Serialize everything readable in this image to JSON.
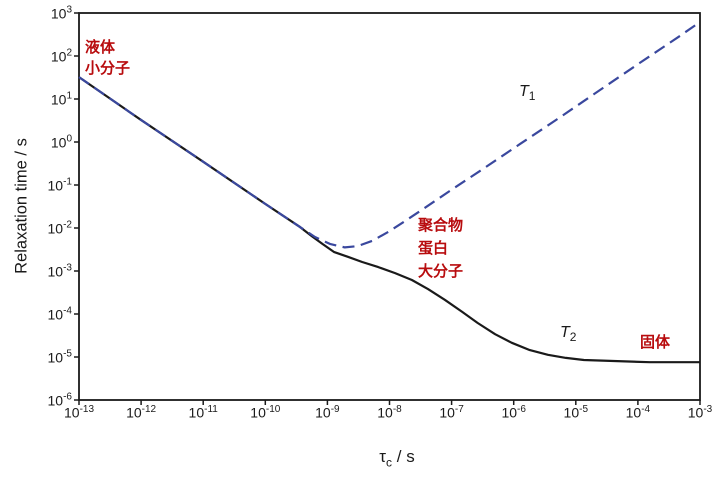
{
  "chart_data": {
    "type": "line",
    "title": "",
    "ylabel": "Relaxation time / s",
    "xlabel": {
      "tau": "τ",
      "sub": "c",
      "unit": " / s"
    },
    "x_scale": "log10",
    "y_scale": "log10",
    "xlim_log10": [
      -13,
      -3
    ],
    "ylim_log10": [
      -6,
      3
    ],
    "tick_mantissa": "10",
    "x_tick_exponents": [
      -13,
      -12,
      -11,
      -10,
      -9,
      -8,
      -7,
      -6,
      -5,
      -4,
      -3
    ],
    "y_tick_exponents": [
      3,
      2,
      1,
      0,
      -1,
      -2,
      -3,
      -4,
      -5,
      -6
    ],
    "grid": false,
    "legend_position": "none",
    "axis_color": "#1a1a1a",
    "series": [
      {
        "name": "T1",
        "label": {
          "base": "T",
          "sub": "1"
        },
        "line_style": "dashed",
        "color": "#3a489e",
        "points_log10": [
          [
            -13.0,
            1.51
          ],
          [
            -12.02,
            0.53
          ],
          [
            -11.02,
            -0.44
          ],
          [
            -10.02,
            -1.42
          ],
          [
            -9.44,
            -1.98
          ],
          [
            -9.2,
            -2.21
          ],
          [
            -8.96,
            -2.37
          ],
          [
            -8.72,
            -2.45
          ],
          [
            -8.51,
            -2.42
          ],
          [
            -8.28,
            -2.3
          ],
          [
            -8.02,
            -2.09
          ],
          [
            -7.75,
            -1.84
          ],
          [
            -7.43,
            -1.53
          ],
          [
            -7.03,
            -1.14
          ],
          [
            -6.54,
            -0.67
          ],
          [
            -5.9,
            -0.05
          ],
          [
            -5.25,
            0.58
          ],
          [
            -4.61,
            1.21
          ],
          [
            -3.97,
            1.84
          ],
          [
            -3.32,
            2.47
          ],
          [
            -3.0,
            2.79
          ]
        ]
      },
      {
        "name": "T2",
        "label": {
          "base": "T",
          "sub": "2"
        },
        "line_style": "solid",
        "color": "#1a1a1a",
        "points_log10": [
          [
            -13.0,
            1.51
          ],
          [
            -12.02,
            0.53
          ],
          [
            -11.02,
            -0.44
          ],
          [
            -10.02,
            -1.42
          ],
          [
            -9.44,
            -1.98
          ],
          [
            -9.25,
            -2.19
          ],
          [
            -9.08,
            -2.37
          ],
          [
            -8.89,
            -2.56
          ],
          [
            -8.67,
            -2.67
          ],
          [
            -8.44,
            -2.79
          ],
          [
            -8.18,
            -2.91
          ],
          [
            -7.91,
            -3.05
          ],
          [
            -7.64,
            -3.21
          ],
          [
            -7.38,
            -3.42
          ],
          [
            -7.11,
            -3.67
          ],
          [
            -6.83,
            -3.95
          ],
          [
            -6.58,
            -4.21
          ],
          [
            -6.3,
            -4.47
          ],
          [
            -6.03,
            -4.67
          ],
          [
            -5.74,
            -4.84
          ],
          [
            -5.45,
            -4.95
          ],
          [
            -5.16,
            -5.02
          ],
          [
            -4.87,
            -5.07
          ],
          [
            -4.45,
            -5.09
          ],
          [
            -3.81,
            -5.12
          ],
          [
            -3.0,
            -5.12
          ]
        ]
      }
    ],
    "annotations": {
      "liquid": {
        "lines": [
          "液体",
          "小分子"
        ],
        "color": "#b80c0e",
        "meaning": "liquid / small molecules"
      },
      "polymer": {
        "lines": [
          "聚合物",
          "蛋白",
          "大分子"
        ],
        "color": "#b80c0e",
        "meaning": "polymer / protein / macromolecule"
      },
      "solid": {
        "lines": [
          "固体"
        ],
        "color": "#b80c0e",
        "meaning": "solid"
      }
    }
  }
}
